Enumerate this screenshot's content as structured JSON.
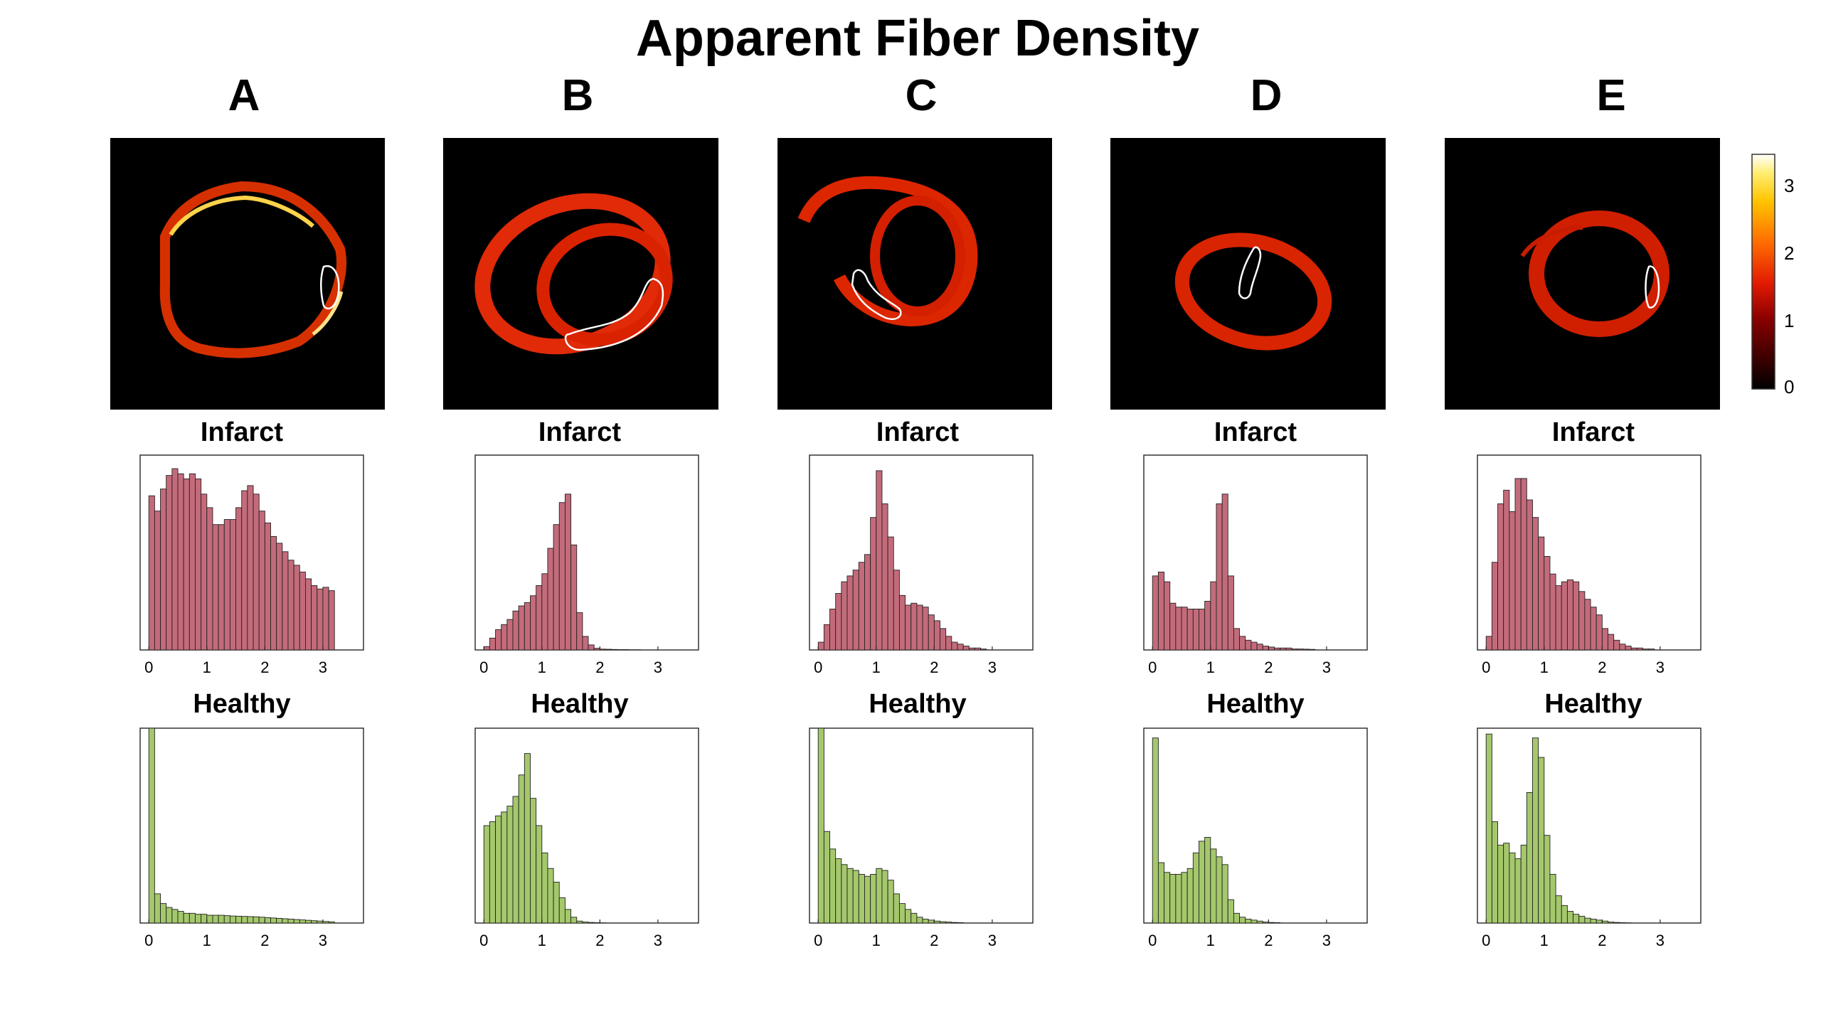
{
  "figure": {
    "title": "Apparent Fiber Density",
    "colorbar": {
      "ticks": [
        "3",
        "2",
        "1",
        "0"
      ],
      "range": [
        0,
        3.3
      ]
    }
  },
  "colors": {
    "infarct_bar": "#C46B7B",
    "healthy_bar": "#A4C86B",
    "bar_edge": "#222222",
    "image_bg": "#000000"
  },
  "panels": [
    {
      "letter": "A",
      "infarct_title": "Infarct",
      "healthy_title": "Healthy"
    },
    {
      "letter": "B",
      "infarct_title": "Infarct",
      "healthy_title": "Healthy"
    },
    {
      "letter": "C",
      "infarct_title": "Infarct",
      "healthy_title": "Healthy"
    },
    {
      "letter": "D",
      "infarct_title": "Infarct",
      "healthy_title": "Healthy"
    },
    {
      "letter": "E",
      "infarct_title": "Infarct",
      "healthy_title": "Healthy"
    }
  ],
  "chart_data": [
    {
      "type": "bar",
      "panel": "A",
      "title": "Infarct",
      "xlim": [
        -0.15,
        3.7
      ],
      "xticks": [
        "0",
        "1",
        "2",
        "3"
      ],
      "bin_start": 0,
      "bin_width": 0.1,
      "ylim": [
        0,
        115
      ],
      "values": [
        91,
        82,
        95,
        103,
        107,
        104,
        101,
        104,
        101,
        92,
        84,
        74,
        74,
        77,
        77,
        84,
        94,
        97,
        92,
        82,
        75,
        67,
        63,
        58,
        53,
        50,
        46,
        42,
        38,
        36,
        37,
        35
      ]
    },
    {
      "type": "bar",
      "panel": "A",
      "title": "Healthy",
      "xlim": [
        -0.15,
        3.7
      ],
      "xticks": [
        "0",
        "1",
        "2",
        "3"
      ],
      "bin_start": 0,
      "bin_width": 0.1,
      "ylim": [
        0,
        100
      ],
      "values": [
        100,
        15,
        10,
        8,
        7,
        6,
        5,
        5,
        4.5,
        4.5,
        4,
        4,
        4,
        3.8,
        3.6,
        3.5,
        3.4,
        3.3,
        3.2,
        3,
        2.8,
        2.6,
        2.4,
        2.2,
        2,
        1.8,
        1.6,
        1.4,
        1.2,
        1,
        0.8,
        0.6
      ]
    },
    {
      "type": "bar",
      "panel": "B",
      "title": "Infarct",
      "xlim": [
        -0.15,
        3.7
      ],
      "xticks": [
        "0",
        "1",
        "2",
        "3"
      ],
      "bin_start": 0,
      "bin_width": 0.1,
      "ylim": [
        0,
        115
      ],
      "values": [
        2,
        7,
        12,
        15,
        18,
        23,
        26,
        28,
        32,
        38,
        45,
        60,
        74,
        87,
        92,
        62,
        22,
        8,
        3,
        1,
        0.5,
        0.4,
        0.3,
        0.2,
        0.2,
        0.1,
        0.1,
        0,
        0,
        0,
        0,
        0
      ]
    },
    {
      "type": "bar",
      "panel": "B",
      "title": "Healthy",
      "xlim": [
        -0.15,
        3.7
      ],
      "xticks": [
        "0",
        "1",
        "2",
        "3"
      ],
      "bin_start": 0,
      "bin_width": 0.1,
      "ylim": [
        0,
        100
      ],
      "values": [
        50,
        52,
        55,
        57,
        60,
        65,
        76,
        87,
        64,
        50,
        36,
        28,
        21,
        13,
        7,
        3,
        1,
        0.5,
        0.3,
        0.2,
        0.1,
        0,
        0,
        0,
        0,
        0,
        0,
        0,
        0,
        0,
        0,
        0
      ]
    },
    {
      "type": "bar",
      "panel": "C",
      "title": "Infarct",
      "xlim": [
        -0.15,
        3.7
      ],
      "xticks": [
        "0",
        "1",
        "2",
        "3"
      ],
      "bin_start": 0,
      "bin_width": 0.1,
      "ylim": [
        0,
        100
      ],
      "values": [
        4,
        13,
        21,
        29,
        35,
        38,
        41,
        45,
        49,
        68,
        92,
        75,
        58,
        41,
        28,
        23,
        24,
        23,
        22,
        18,
        15,
        11,
        7,
        4,
        3,
        2,
        1,
        1,
        0.5,
        0,
        0,
        0
      ]
    },
    {
      "type": "bar",
      "panel": "C",
      "title": "Healthy",
      "xlim": [
        -0.15,
        3.7
      ],
      "xticks": [
        "0",
        "1",
        "2",
        "3"
      ],
      "bin_start": 0,
      "bin_width": 0.1,
      "ylim": [
        0,
        100
      ],
      "values": [
        100,
        47,
        38,
        33,
        30,
        28,
        27,
        25,
        24,
        25,
        28,
        27,
        22,
        15,
        10,
        7,
        5,
        3,
        2,
        1.5,
        1,
        0.7,
        0.5,
        0.3,
        0.2,
        0,
        0,
        0,
        0,
        0,
        0,
        0
      ]
    },
    {
      "type": "bar",
      "panel": "D",
      "title": "Infarct",
      "xlim": [
        -0.15,
        3.7
      ],
      "xticks": [
        "0",
        "1",
        "2",
        "3"
      ],
      "bin_start": 0,
      "bin_width": 0.1,
      "ylim": [
        0,
        100
      ],
      "values": [
        38,
        40,
        35,
        24,
        22,
        22,
        21,
        21,
        21,
        25,
        35,
        75,
        80,
        38,
        11,
        7,
        5,
        4,
        3,
        2,
        1.5,
        1,
        1,
        1,
        0.5,
        0.5,
        0.4,
        0.3,
        0,
        0,
        0,
        0
      ]
    },
    {
      "type": "bar",
      "panel": "D",
      "title": "Healthy",
      "xlim": [
        -0.15,
        3.7
      ],
      "xticks": [
        "0",
        "1",
        "2",
        "3"
      ],
      "bin_start": 0,
      "bin_width": 0.1,
      "ylim": [
        0,
        100
      ],
      "values": [
        95,
        31,
        26,
        25,
        25,
        26,
        28,
        36,
        42,
        44,
        38,
        34,
        30,
        12,
        5,
        3,
        2,
        1.5,
        1,
        0.5,
        0.3,
        0.2,
        0,
        0,
        0,
        0,
        0,
        0,
        0,
        0,
        0,
        0
      ]
    },
    {
      "type": "bar",
      "panel": "E",
      "title": "Infarct",
      "xlim": [
        -0.15,
        3.7
      ],
      "xticks": [
        "0",
        "1",
        "2",
        "3"
      ],
      "bin_start": 0,
      "bin_width": 0.1,
      "ylim": [
        0,
        100
      ],
      "values": [
        7,
        45,
        75,
        82,
        71,
        88,
        88,
        77,
        68,
        58,
        48,
        39,
        33,
        35,
        36,
        35,
        30,
        26,
        22,
        18,
        11,
        8,
        5,
        3,
        2,
        1,
        1,
        0.5,
        0.5,
        0,
        0,
        0
      ]
    },
    {
      "type": "bar",
      "panel": "E",
      "title": "Healthy",
      "xlim": [
        -0.15,
        3.7
      ],
      "xticks": [
        "0",
        "1",
        "2",
        "3"
      ],
      "bin_start": 0,
      "bin_width": 0.1,
      "ylim": [
        0,
        100
      ],
      "values": [
        97,
        52,
        40,
        41,
        36,
        33,
        40,
        67,
        95,
        85,
        45,
        25,
        14,
        9,
        6,
        4.5,
        3.5,
        2.5,
        2,
        1.5,
        1,
        0.5,
        0.3,
        0.2,
        0.1,
        0,
        0,
        0,
        0,
        0,
        0,
        0
      ]
    }
  ]
}
